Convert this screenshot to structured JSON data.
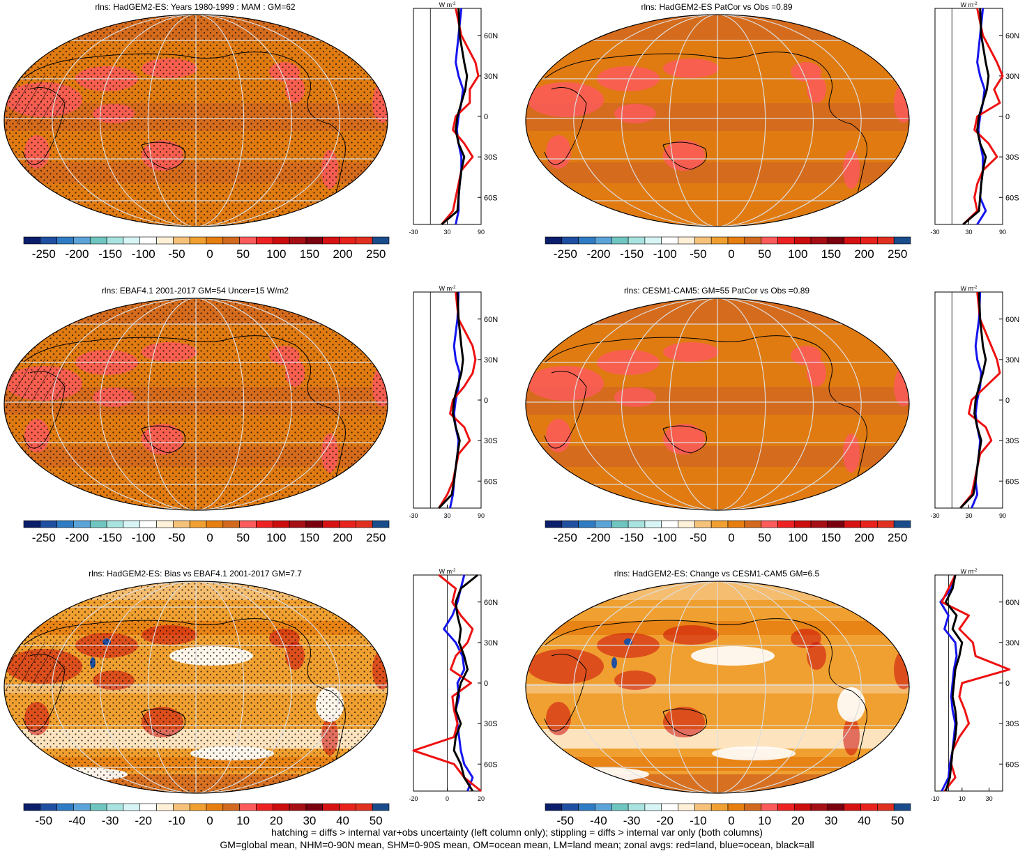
{
  "palette": [
    "#0b1e6b",
    "#1f4fa0",
    "#2f7cc4",
    "#5aa4d9",
    "#6fc6c0",
    "#a9e3e0",
    "#d8f5f5",
    "#ffffff",
    "#fff0d8",
    "#f6c27a",
    "#f0a030",
    "#e67e10",
    "#d2691e",
    "#fb5b5b",
    "#ee2222",
    "#cc0d0d",
    "#a50f15",
    "#7a0010",
    "#d61212",
    "#e8221c",
    "#e03020",
    "#1a4c8c"
  ],
  "legend_labels": {
    "land": "red",
    "ocean": "blue",
    "all": "black"
  },
  "colors": {
    "land": "#ee1111",
    "ocean": "#1515ee",
    "all": "#000000"
  },
  "panels": [
    {
      "id": "p1",
      "title": "rlns: HadGEM2-ES: Years 1980-1999 : MAM : GM=62",
      "cb_labels": [
        "-250",
        "-200",
        "-150",
        "-100",
        "-50",
        "0",
        "50",
        "100",
        "150",
        "200",
        "250"
      ],
      "zonal_ticks": [
        "-30",
        "30",
        "90"
      ],
      "zonal_range": [
        -30,
        90
      ],
      "lat_labels": [
        "60N",
        "30N",
        "0",
        "30S",
        "60S"
      ],
      "units": "W m",
      "units_sup": "-2",
      "stipple": true,
      "hatch": true,
      "style": "mean"
    },
    {
      "id": "p2",
      "title": "rlns: HadGEM2-ES PatCor vs Obs =0.89",
      "cb_labels": [
        "-250",
        "-200",
        "-150",
        "-100",
        "-50",
        "0",
        "50",
        "100",
        "150",
        "200",
        "250"
      ],
      "zonal_ticks": [
        "-30",
        "30",
        "90"
      ],
      "zonal_range": [
        -30,
        90
      ],
      "lat_labels": [
        "60N",
        "30N",
        "0",
        "30S",
        "60S"
      ],
      "units": "W m",
      "units_sup": "-2",
      "stipple": false,
      "hatch": false,
      "style": "mean"
    },
    {
      "id": "p3",
      "title": "rlns: EBAF4.1 2001-2017 GM=54 Uncer=15 W/m2",
      "cb_labels": [
        "-250",
        "-200",
        "-150",
        "-100",
        "-50",
        "0",
        "50",
        "100",
        "150",
        "200",
        "250"
      ],
      "zonal_ticks": [
        "-30",
        "30",
        "90"
      ],
      "zonal_range": [
        -30,
        90
      ],
      "lat_labels": [
        "60N",
        "30N",
        "0",
        "30S",
        "60S"
      ],
      "units": "W m",
      "units_sup": "-2",
      "stipple": true,
      "hatch": true,
      "style": "mean"
    },
    {
      "id": "p4",
      "title": "rlns: CESM1-CAM5: GM=55 PatCor vs Obs =0.89",
      "cb_labels": [
        "-250",
        "-200",
        "-150",
        "-100",
        "-50",
        "0",
        "50",
        "100",
        "150",
        "200",
        "250"
      ],
      "zonal_ticks": [
        "-30",
        "30",
        "90"
      ],
      "zonal_range": [
        -30,
        90
      ],
      "lat_labels": [
        "60N",
        "30N",
        "0",
        "30S",
        "60S"
      ],
      "units": "W m",
      "units_sup": "-2",
      "stipple": false,
      "hatch": false,
      "style": "mean"
    },
    {
      "id": "p5",
      "title": "rlns: HadGEM2-ES: Bias vs EBAF4.1 2001-2017 GM=7.7",
      "cb_labels": [
        "-50",
        "-40",
        "-30",
        "-20",
        "-10",
        "0",
        "10",
        "20",
        "30",
        "40",
        "50"
      ],
      "zonal_ticks": [
        "-20",
        "0",
        "20"
      ],
      "zonal_range": [
        -20,
        20
      ],
      "lat_labels": [
        "60N",
        "30N",
        "0",
        "30S",
        "60S"
      ],
      "units": "W m",
      "units_sup": "-2",
      "stipple": true,
      "hatch": true,
      "style": "diff"
    },
    {
      "id": "p6",
      "title": "rlns: HadGEM2-ES: Change vs CESM1-CAM5 GM=6.5",
      "cb_labels": [
        "-50",
        "-40",
        "-30",
        "-20",
        "-10",
        "0",
        "10",
        "20",
        "30",
        "40",
        "50"
      ],
      "zonal_ticks": [
        "-10",
        "10",
        "30"
      ],
      "zonal_range": [
        -10,
        40
      ],
      "lat_labels": [
        "60N",
        "30N",
        "0",
        "30S",
        "60S"
      ],
      "units": "W m",
      "units_sup": "-2",
      "stipple": false,
      "hatch": false,
      "style": "diff"
    }
  ],
  "footer": {
    "line1": "hatching = diffs > internal var+obs uncertainty (left column only); stippling = diffs > internal var only (both columns)",
    "line2": "GM=global mean, NHM=0-90N mean, SHM=0-90S mean, OM=ocean mean, LM=land mean; zonal avgs: red=land, blue=ocean, black=all"
  },
  "chart_data": [
    {
      "type": "heatmap",
      "title": "rlns: HadGEM2-ES: Years 1980-1999 : MAM : GM=62",
      "colorbar": [
        -250,
        -200,
        -150,
        -100,
        -50,
        0,
        50,
        100,
        150,
        200,
        250
      ],
      "zonal_mean": {
        "x_range": [
          -30,
          90
        ],
        "lat": [
          80,
          60,
          40,
          30,
          20,
          10,
          0,
          -10,
          -20,
          -30,
          -40,
          -50,
          -60,
          -70,
          -80
        ],
        "all": [
          50,
          52,
          60,
          65,
          62,
          55,
          48,
          45,
          50,
          60,
          55,
          52,
          50,
          48,
          20
        ],
        "land": [
          45,
          55,
          80,
          85,
          70,
          70,
          45,
          40,
          60,
          75,
          55,
          50,
          45,
          40,
          20
        ],
        "ocean": [
          55,
          50,
          45,
          50,
          58,
          55,
          50,
          47,
          50,
          55,
          55,
          52,
          50,
          50,
          45
        ]
      }
    },
    {
      "type": "heatmap",
      "title": "rlns: HadGEM2-ES PatCor vs Obs =0.89",
      "colorbar": [
        -250,
        -200,
        -150,
        -100,
        -50,
        0,
        50,
        100,
        150,
        200,
        250
      ],
      "zonal_mean": {
        "x_range": [
          -30,
          90
        ],
        "lat": [
          80,
          60,
          40,
          30,
          20,
          10,
          0,
          -10,
          -20,
          -30,
          -40,
          -50,
          -60,
          -70,
          -80
        ],
        "all": [
          50,
          52,
          60,
          65,
          62,
          55,
          48,
          45,
          50,
          60,
          55,
          52,
          50,
          48,
          20
        ],
        "land": [
          45,
          55,
          80,
          90,
          75,
          85,
          45,
          40,
          65,
          80,
          55,
          45,
          40,
          45,
          20
        ],
        "ocean": [
          55,
          50,
          45,
          50,
          58,
          55,
          50,
          47,
          50,
          55,
          55,
          52,
          50,
          60,
          45
        ]
      }
    },
    {
      "type": "heatmap",
      "title": "rlns: EBAF4.1 2001-2017 GM=54 Uncer=15 W/m2",
      "colorbar": [
        -250,
        -200,
        -150,
        -100,
        -50,
        0,
        50,
        100,
        150,
        200,
        250
      ],
      "zonal_mean": {
        "x_range": [
          -30,
          90
        ],
        "lat": [
          80,
          60,
          40,
          30,
          20,
          10,
          0,
          -10,
          -20,
          -30,
          -40,
          -50,
          -60,
          -70,
          -80
        ],
        "all": [
          48,
          50,
          55,
          58,
          55,
          48,
          42,
          40,
          45,
          52,
          48,
          45,
          42,
          38,
          15
        ],
        "land": [
          45,
          50,
          75,
          80,
          75,
          60,
          40,
          35,
          60,
          70,
          50,
          45,
          40,
          30,
          15
        ],
        "ocean": [
          50,
          48,
          42,
          45,
          52,
          50,
          45,
          42,
          45,
          50,
          48,
          45,
          42,
          40,
          35
        ]
      }
    },
    {
      "type": "heatmap",
      "title": "rlns: CESM1-CAM5: GM=55 PatCor vs Obs =0.89",
      "colorbar": [
        -250,
        -200,
        -150,
        -100,
        -50,
        0,
        50,
        100,
        150,
        200,
        250
      ],
      "zonal_mean": {
        "x_range": [
          -30,
          90
        ],
        "lat": [
          80,
          60,
          40,
          30,
          20,
          10,
          0,
          -10,
          -20,
          -30,
          -40,
          -50,
          -60,
          -70,
          -80
        ],
        "all": [
          48,
          50,
          55,
          60,
          55,
          48,
          42,
          40,
          45,
          52,
          48,
          45,
          42,
          38,
          15
        ],
        "land": [
          45,
          50,
          70,
          80,
          85,
          60,
          35,
          30,
          60,
          70,
          50,
          45,
          40,
          35,
          15
        ],
        "ocean": [
          50,
          48,
          42,
          45,
          52,
          50,
          45,
          42,
          45,
          50,
          48,
          45,
          42,
          45,
          35
        ]
      }
    },
    {
      "type": "heatmap",
      "title": "rlns: HadGEM2-ES: Bias vs EBAF4.1 2001-2017 GM=7.7",
      "colorbar": [
        -50,
        -40,
        -30,
        -20,
        -10,
        0,
        10,
        20,
        30,
        40,
        50
      ],
      "zonal_mean": {
        "x_range": [
          -20,
          20
        ],
        "lat": [
          80,
          70,
          60,
          50,
          40,
          30,
          20,
          10,
          0,
          -10,
          -20,
          -30,
          -40,
          -50,
          -60,
          -70,
          -80
        ],
        "all": [
          18,
          8,
          5,
          6,
          8,
          7,
          10,
          12,
          8,
          6,
          5,
          8,
          5,
          4,
          8,
          10,
          15
        ],
        "land": [
          -5,
          5,
          3,
          8,
          15,
          12,
          5,
          2,
          14,
          3,
          4,
          6,
          4,
          -20,
          4,
          10,
          20
        ],
        "ocean": [
          10,
          8,
          6,
          3,
          -2,
          5,
          9,
          10,
          6,
          7,
          5,
          6,
          7,
          8,
          10,
          15,
          12
        ]
      }
    },
    {
      "type": "heatmap",
      "title": "rlns: HadGEM2-ES: Change vs CESM1-CAM5 GM=6.5",
      "colorbar": [
        -50,
        -40,
        -30,
        -20,
        -10,
        0,
        10,
        20,
        30,
        40,
        50
      ],
      "zonal_mean": {
        "x_range": [
          -10,
          40
        ],
        "lat": [
          80,
          70,
          60,
          50,
          40,
          30,
          20,
          10,
          0,
          -10,
          -20,
          -30,
          -40,
          -50,
          -60,
          -70,
          -80
        ],
        "all": [
          5,
          3,
          -2,
          6,
          3,
          10,
          8,
          5,
          4,
          3,
          5,
          6,
          5,
          3,
          2,
          1,
          -2
        ],
        "land": [
          5,
          0,
          -5,
          15,
          8,
          18,
          20,
          45,
          10,
          8,
          12,
          15,
          8,
          3,
          2,
          5,
          -3
        ],
        "ocean": [
          5,
          2,
          -6,
          0,
          -3,
          5,
          6,
          4,
          3,
          2,
          3,
          5,
          4,
          3,
          1,
          0,
          -5
        ]
      }
    }
  ]
}
